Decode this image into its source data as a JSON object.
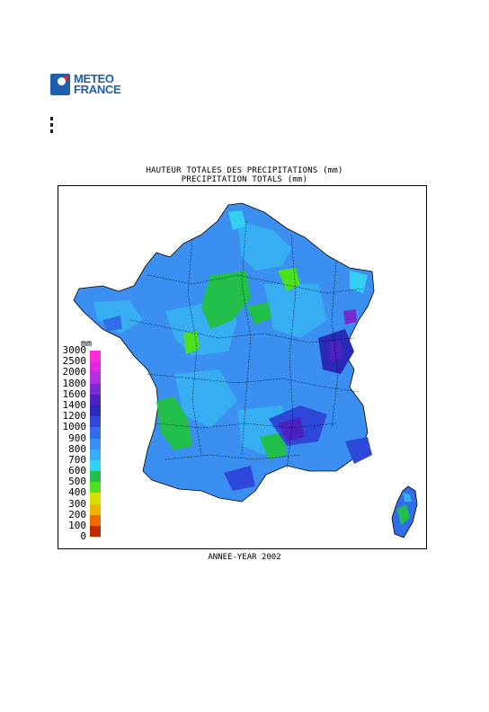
{
  "header": {
    "logo_line1": "METEO",
    "logo_line2": "FRANCE"
  },
  "chart": {
    "title_fr": "HAUTEUR TOTALES DES PRECIPITATIONS (mm)",
    "title_en": "PRECIPITATION TOTALS (mm)",
    "footer": "ANNEE-YEAR 2002"
  },
  "legend": {
    "unit": "mm",
    "classes": [
      {
        "label": "3000",
        "color": "#ff2ad8"
      },
      {
        "label": "2500",
        "color": "#e028e0"
      },
      {
        "label": "2000",
        "color": "#b030e0"
      },
      {
        "label": "1800",
        "color": "#7a2ad0"
      },
      {
        "label": "1600",
        "color": "#4a22c0"
      },
      {
        "label": "1400",
        "color": "#2a2ab8"
      },
      {
        "label": "1200",
        "color": "#2d47d8"
      },
      {
        "label": "1000",
        "color": "#2f6ee8"
      },
      {
        "label": "900",
        "color": "#3a8ff0"
      },
      {
        "label": "800",
        "color": "#38aef2"
      },
      {
        "label": "700",
        "color": "#35d0ef"
      },
      {
        "label": "600",
        "color": "#22c04a"
      },
      {
        "label": "500",
        "color": "#4de020"
      },
      {
        "label": "400",
        "color": "#d6e000"
      },
      {
        "label": "300",
        "color": "#f0b400"
      },
      {
        "label": "200",
        "color": "#f06a00"
      },
      {
        "label": "100",
        "color": "#c02a00"
      },
      {
        "label": "0",
        "color": "#7a0000"
      }
    ]
  }
}
